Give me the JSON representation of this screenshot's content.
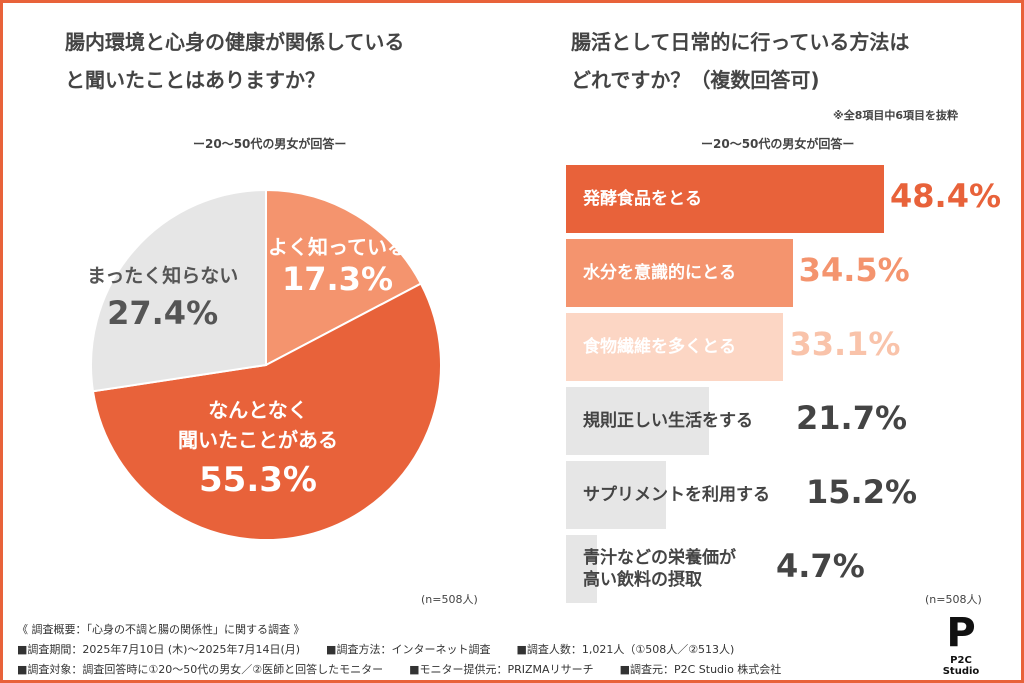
{
  "left": {
    "title_line1": "腸内環境と心身の健康が関係している",
    "title_line2": "と聞いたことはありますか？",
    "subtitle": "ー20～50代の男女が回答ー",
    "n": "(n=508人)"
  },
  "right": {
    "title_line1": "腸活として日常的に行っている方法は",
    "title_line2": "どれですか？（複数回答可)",
    "note": "※全8項目中6項目を抜粋",
    "subtitle": "ー20～50代の男女が回答ー",
    "n": "(n=508人)"
  },
  "chart_data": [
    {
      "type": "pie",
      "start": "top",
      "direction": "clockwise",
      "slices": [
        {
          "label": "よく知っている",
          "value": 17.3,
          "display": "17.3%",
          "color": "#f4946e"
        },
        {
          "label": "なんとなく聞いたことがある",
          "label_lines": [
            "なんとなく",
            "聞いたことがある"
          ],
          "value": 55.3,
          "display": "55.3%",
          "color": "#e8623a"
        },
        {
          "label": "まったく知らない",
          "value": 27.4,
          "display": "27.4%",
          "color": "#e6e6e6"
        }
      ]
    },
    {
      "type": "bar",
      "orientation": "horizontal",
      "categories": [
        "発酵食品をとる",
        "水分を意識的にとる",
        "食物繊維を多くとる",
        "規則正しい生活をする",
        "サプリメントを利用する",
        "青汁などの栄養価が高い飲料の摂取"
      ],
      "category_lines": [
        [
          "発酵食品をとる"
        ],
        [
          "水分を意識的にとる"
        ],
        [
          "食物繊維を多くとる"
        ],
        [
          "規則正しい生活をする"
        ],
        [
          "サプリメントを利用する"
        ],
        [
          "青汁などの栄養価が",
          "高い飲料の摂取"
        ]
      ],
      "values": [
        48.4,
        34.5,
        33.1,
        21.7,
        15.2,
        4.7
      ],
      "displays": [
        "48.4%",
        "34.5%",
        "33.1%",
        "21.7%",
        "15.2%",
        "4.7%"
      ],
      "colors": [
        "#e8623a",
        "#f4946e",
        "#fcd6c4",
        "#e6e6e6",
        "#e6e6e6",
        "#e6e6e6"
      ],
      "label_colors": [
        "#ffffff",
        "#ffffff",
        "#ffffff",
        "#444444",
        "#444444",
        "#444444"
      ],
      "value_colors": [
        "#e8623a",
        "#f4946e",
        "#f9c3aa",
        "#444444",
        "#444444",
        "#444444"
      ]
    }
  ],
  "footer": {
    "heading": "《 調査概要：「心身の不調と腸の関係性」に関する調査 》",
    "row1": [
      "■調査期間：2025年7月10日 (木)～2025年7月14日(月)",
      "■調査方法：インターネット調査",
      "■調査人数：1,021人（①508人／②513人)"
    ],
    "row2": [
      "■調査対象：調査回答時に①20～50代の男女／②医師と回答したモニター",
      "■モニター提供元：PRIZMAリサーチ",
      "■調査元：P2C Studio 株式会社"
    ]
  },
  "logo": {
    "text": "P2C Studio"
  }
}
